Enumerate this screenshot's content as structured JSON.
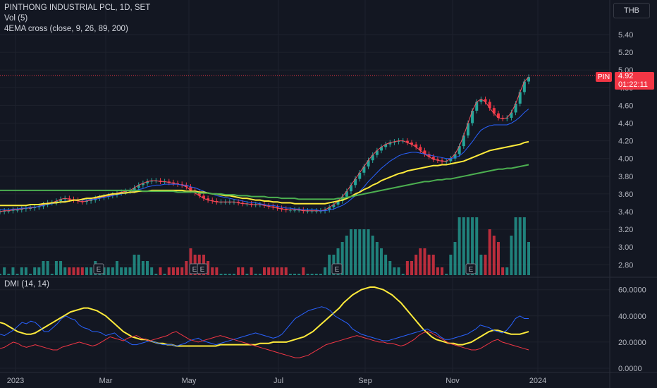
{
  "header": {
    "title": "PINTHONG INDUSTRIAL PCL, 1D, SET",
    "vol_label": "Vol (5)",
    "ema_label": "4EMA cross (close, 9, 26, 89, 200)",
    "dmi_label": "DMI (14, 14)",
    "currency": "THB"
  },
  "last_price": {
    "symbol": "PIN",
    "price": "4.92",
    "countdown": "01:22:11"
  },
  "colors": {
    "up": "#26a69a",
    "down": "#f23645",
    "ema9": "#f7525f",
    "ema26": "#2962ff",
    "ema89": "#ffeb3b",
    "ema200": "#4caf50",
    "adx": "#ffeb3b",
    "diplus": "#2962ff",
    "diminus": "#f23645"
  },
  "chart_data": [
    {
      "type": "candlestick",
      "title": "PINTHONG INDUSTRIAL PCL, 1D, SET",
      "ylim": [
        2.7,
        5.5
      ],
      "y_ticks": [
        "5.40",
        "5.20",
        "5.00",
        "4.80",
        "4.60",
        "4.40",
        "4.20",
        "4.00",
        "3.80",
        "3.60",
        "3.40",
        "3.20",
        "3.00",
        "2.80"
      ],
      "x_ticks": [
        "2023",
        "Mar",
        "May",
        "Jul",
        "Sep",
        "Nov",
        "2024"
      ],
      "close": [
        3.4,
        3.41,
        3.41,
        3.42,
        3.42,
        3.43,
        3.44,
        3.44,
        3.45,
        3.46,
        3.48,
        3.5,
        3.5,
        3.52,
        3.54,
        3.55,
        3.54,
        3.53,
        3.52,
        3.51,
        3.52,
        3.53,
        3.55,
        3.56,
        3.57,
        3.58,
        3.59,
        3.61,
        3.62,
        3.63,
        3.64,
        3.67,
        3.7,
        3.72,
        3.74,
        3.75,
        3.75,
        3.74,
        3.74,
        3.73,
        3.72,
        3.71,
        3.7,
        3.68,
        3.64,
        3.61,
        3.58,
        3.55,
        3.53,
        3.52,
        3.51,
        3.51,
        3.51,
        3.51,
        3.51,
        3.5,
        3.49,
        3.49,
        3.48,
        3.48,
        3.48,
        3.47,
        3.46,
        3.45,
        3.44,
        3.43,
        3.42,
        3.42,
        3.42,
        3.42,
        3.41,
        3.41,
        3.41,
        3.41,
        3.41,
        3.42,
        3.45,
        3.48,
        3.52,
        3.57,
        3.63,
        3.7,
        3.77,
        3.84,
        3.91,
        3.98,
        4.04,
        4.09,
        4.13,
        4.16,
        4.18,
        4.19,
        4.2,
        4.2,
        4.18,
        4.16,
        4.13,
        4.09,
        4.05,
        4.02,
        3.99,
        3.98,
        3.97,
        3.97,
        4.0,
        4.05,
        4.14,
        4.26,
        4.4,
        4.54,
        4.64,
        4.67,
        4.64,
        4.57,
        4.51,
        4.46,
        4.45,
        4.46,
        4.52,
        4.62,
        4.75,
        4.87,
        4.92
      ],
      "ema": [
        {
          "name": "9",
          "values": [
            3.4,
            3.41,
            3.41,
            3.42,
            3.42,
            3.43,
            3.44,
            3.44,
            3.45,
            3.46,
            3.48,
            3.5,
            3.5,
            3.52,
            3.54,
            3.55,
            3.54,
            3.53,
            3.52,
            3.51,
            3.52,
            3.53,
            3.55,
            3.56,
            3.57,
            3.58,
            3.59,
            3.61,
            3.62,
            3.63,
            3.64,
            3.67,
            3.7,
            3.72,
            3.74,
            3.75,
            3.75,
            3.74,
            3.74,
            3.73,
            3.72,
            3.71,
            3.7,
            3.68,
            3.64,
            3.61,
            3.58,
            3.55,
            3.53,
            3.52,
            3.51,
            3.51,
            3.51,
            3.51,
            3.51,
            3.5,
            3.49,
            3.49,
            3.48,
            3.48,
            3.48,
            3.47,
            3.46,
            3.45,
            3.44,
            3.43,
            3.42,
            3.42,
            3.42,
            3.42,
            3.41,
            3.41,
            3.41,
            3.41,
            3.41,
            3.42,
            3.45,
            3.48,
            3.52,
            3.57,
            3.63,
            3.7,
            3.77,
            3.84,
            3.91,
            3.98,
            4.04,
            4.09,
            4.13,
            4.16,
            4.18,
            4.19,
            4.2,
            4.2,
            4.18,
            4.16,
            4.13,
            4.09,
            4.05,
            4.02,
            3.99,
            3.98,
            3.97,
            3.97,
            4.0,
            4.05,
            4.14,
            4.26,
            4.4,
            4.54,
            4.64,
            4.67,
            4.64,
            4.57,
            4.51,
            4.46,
            4.45,
            4.46,
            4.52,
            4.62,
            4.75,
            4.87,
            4.92
          ]
        },
        {
          "name": "26",
          "values": [
            3.42,
            3.42,
            3.42,
            3.43,
            3.43,
            3.44,
            3.44,
            3.45,
            3.45,
            3.46,
            3.47,
            3.48,
            3.49,
            3.5,
            3.51,
            3.52,
            3.52,
            3.53,
            3.53,
            3.53,
            3.53,
            3.54,
            3.54,
            3.55,
            3.56,
            3.57,
            3.58,
            3.59,
            3.6,
            3.61,
            3.62,
            3.63,
            3.65,
            3.66,
            3.68,
            3.69,
            3.7,
            3.7,
            3.71,
            3.71,
            3.71,
            3.71,
            3.7,
            3.7,
            3.68,
            3.67,
            3.65,
            3.63,
            3.61,
            3.6,
            3.58,
            3.57,
            3.56,
            3.55,
            3.54,
            3.53,
            3.52,
            3.51,
            3.5,
            3.5,
            3.49,
            3.48,
            3.47,
            3.47,
            3.46,
            3.45,
            3.44,
            3.44,
            3.43,
            3.43,
            3.42,
            3.42,
            3.42,
            3.42,
            3.41,
            3.41,
            3.42,
            3.43,
            3.45,
            3.47,
            3.5,
            3.54,
            3.58,
            3.63,
            3.68,
            3.74,
            3.79,
            3.84,
            3.89,
            3.93,
            3.97,
            4.0,
            4.03,
            4.05,
            4.06,
            4.07,
            4.07,
            4.06,
            4.05,
            4.04,
            4.03,
            4.02,
            4.01,
            4.0,
            4.0,
            4.01,
            4.03,
            4.07,
            4.13,
            4.19,
            4.26,
            4.32,
            4.35,
            4.37,
            4.38,
            4.38,
            4.38,
            4.38,
            4.4,
            4.43,
            4.47,
            4.52,
            4.56
          ]
        },
        {
          "name": "89",
          "values": [
            3.47,
            3.47,
            3.47,
            3.47,
            3.47,
            3.47,
            3.47,
            3.48,
            3.48,
            3.48,
            3.49,
            3.49,
            3.5,
            3.5,
            3.51,
            3.51,
            3.52,
            3.53,
            3.53,
            3.54,
            3.55,
            3.55,
            3.56,
            3.57,
            3.58,
            3.59,
            3.6,
            3.6,
            3.61,
            3.61,
            3.62,
            3.62,
            3.63,
            3.63,
            3.63,
            3.64,
            3.64,
            3.64,
            3.64,
            3.64,
            3.64,
            3.64,
            3.64,
            3.63,
            3.63,
            3.63,
            3.62,
            3.62,
            3.61,
            3.6,
            3.6,
            3.59,
            3.58,
            3.58,
            3.57,
            3.56,
            3.55,
            3.55,
            3.54,
            3.53,
            3.53,
            3.52,
            3.52,
            3.51,
            3.51,
            3.5,
            3.5,
            3.5,
            3.49,
            3.49,
            3.49,
            3.49,
            3.49,
            3.49,
            3.49,
            3.49,
            3.5,
            3.51,
            3.52,
            3.53,
            3.55,
            3.57,
            3.6,
            3.62,
            3.65,
            3.67,
            3.7,
            3.72,
            3.75,
            3.77,
            3.79,
            3.81,
            3.83,
            3.84,
            3.86,
            3.87,
            3.88,
            3.89,
            3.9,
            3.91,
            3.92,
            3.92,
            3.93,
            3.93,
            3.94,
            3.95,
            3.96,
            3.97,
            3.99,
            4.01,
            4.03,
            4.05,
            4.07,
            4.09,
            4.1,
            4.11,
            4.12,
            4.13,
            4.14,
            4.15,
            4.16,
            4.18,
            4.19
          ]
        },
        {
          "name": "200",
          "values": [
            3.64,
            3.64,
            3.64,
            3.64,
            3.64,
            3.64,
            3.64,
            3.64,
            3.64,
            3.64,
            3.64,
            3.64,
            3.64,
            3.64,
            3.64,
            3.64,
            3.64,
            3.64,
            3.64,
            3.64,
            3.64,
            3.64,
            3.64,
            3.64,
            3.64,
            3.64,
            3.64,
            3.64,
            3.64,
            3.64,
            3.64,
            3.64,
            3.64,
            3.63,
            3.63,
            3.63,
            3.63,
            3.63,
            3.63,
            3.63,
            3.63,
            3.62,
            3.62,
            3.62,
            3.62,
            3.62,
            3.61,
            3.61,
            3.61,
            3.6,
            3.6,
            3.6,
            3.59,
            3.59,
            3.59,
            3.58,
            3.58,
            3.58,
            3.57,
            3.57,
            3.57,
            3.57,
            3.56,
            3.56,
            3.56,
            3.55,
            3.55,
            3.55,
            3.55,
            3.54,
            3.54,
            3.54,
            3.54,
            3.54,
            3.54,
            3.54,
            3.54,
            3.54,
            3.55,
            3.55,
            3.56,
            3.57,
            3.58,
            3.59,
            3.6,
            3.61,
            3.62,
            3.63,
            3.64,
            3.65,
            3.66,
            3.67,
            3.68,
            3.69,
            3.7,
            3.71,
            3.72,
            3.73,
            3.74,
            3.74,
            3.75,
            3.76,
            3.76,
            3.77,
            3.77,
            3.78,
            3.79,
            3.8,
            3.81,
            3.82,
            3.83,
            3.84,
            3.85,
            3.86,
            3.87,
            3.88,
            3.88,
            3.89,
            3.89,
            3.9,
            3.91,
            3.92,
            3.93
          ]
        }
      ],
      "volume_events": [
        "E",
        "E",
        "E",
        "E",
        "E"
      ]
    },
    {
      "type": "line",
      "title": "DMI (14, 14)",
      "ylim": [
        0,
        65
      ],
      "y_ticks": [
        "60.0000",
        "40.0000",
        "20.0000",
        "0.0000"
      ],
      "series": [
        {
          "name": "ADX",
          "values": [
            35,
            34,
            32,
            30,
            28,
            27,
            26,
            26,
            27,
            29,
            31,
            33,
            35,
            37,
            39,
            41,
            43,
            44,
            45,
            46,
            46,
            45,
            44,
            42,
            40,
            37,
            34,
            31,
            28,
            26,
            24,
            23,
            22,
            22,
            21,
            20,
            19,
            19,
            18,
            18,
            17,
            17,
            17,
            17,
            17,
            17,
            17,
            17,
            17,
            17,
            18,
            18,
            18,
            18,
            18,
            18,
            18,
            18,
            18,
            19,
            19,
            19,
            20,
            20,
            20,
            20,
            21,
            22,
            23,
            24,
            26,
            28,
            31,
            34,
            37,
            40,
            43,
            46,
            50,
            53,
            56,
            58,
            60,
            61,
            62,
            62,
            61,
            60,
            58,
            56,
            53,
            50,
            46,
            42,
            38,
            34,
            30,
            27,
            24,
            22,
            21,
            20,
            19,
            19,
            18,
            18,
            19,
            20,
            22,
            24,
            26,
            28,
            29,
            29,
            28,
            27,
            26,
            26,
            26,
            27,
            28
          ]
        },
        {
          "name": "DI+",
          "values": [
            26,
            25,
            27,
            29,
            32,
            35,
            34,
            36,
            35,
            32,
            28,
            28,
            31,
            34,
            38,
            40,
            38,
            37,
            33,
            31,
            30,
            28,
            28,
            27,
            25,
            26,
            27,
            24,
            22,
            20,
            18,
            18,
            19,
            20,
            21,
            20,
            19,
            18,
            18,
            18,
            17,
            18,
            19,
            21,
            22,
            23,
            21,
            20,
            19,
            18,
            19,
            20,
            21,
            22,
            23,
            24,
            25,
            26,
            27,
            26,
            25,
            24,
            23,
            24,
            26,
            30,
            34,
            38,
            40,
            42,
            44,
            45,
            46,
            47,
            46,
            44,
            40,
            38,
            36,
            34,
            30,
            28,
            26,
            25,
            24,
            23,
            22,
            21,
            21,
            22,
            23,
            24,
            25,
            26,
            27,
            28,
            29,
            30,
            28,
            27,
            24,
            22,
            22,
            23,
            24,
            25,
            26,
            28,
            30,
            33,
            32,
            31,
            29,
            28,
            27,
            29,
            33,
            38,
            40,
            38,
            38
          ]
        },
        {
          "name": "DI-",
          "values": [
            15,
            16,
            18,
            20,
            19,
            17,
            16,
            17,
            18,
            17,
            16,
            15,
            14,
            14,
            16,
            17,
            18,
            19,
            20,
            19,
            18,
            17,
            18,
            20,
            22,
            24,
            23,
            22,
            21,
            23,
            24,
            25,
            23,
            22,
            21,
            22,
            23,
            24,
            25,
            27,
            28,
            26,
            24,
            22,
            21,
            20,
            21,
            22,
            23,
            24,
            25,
            24,
            23,
            22,
            21,
            20,
            19,
            18,
            17,
            16,
            15,
            14,
            13,
            12,
            11,
            10,
            9,
            8,
            8,
            9,
            10,
            12,
            14,
            16,
            18,
            19,
            20,
            21,
            22,
            23,
            24,
            25,
            24,
            23,
            22,
            21,
            20,
            20,
            19,
            19,
            18,
            17,
            18,
            20,
            22,
            25,
            27,
            28,
            27,
            25,
            23,
            21,
            19,
            18,
            17,
            16,
            15,
            14,
            14,
            15,
            17,
            19,
            21,
            22,
            20,
            19,
            18,
            17,
            16,
            15,
            14
          ]
        }
      ]
    }
  ]
}
